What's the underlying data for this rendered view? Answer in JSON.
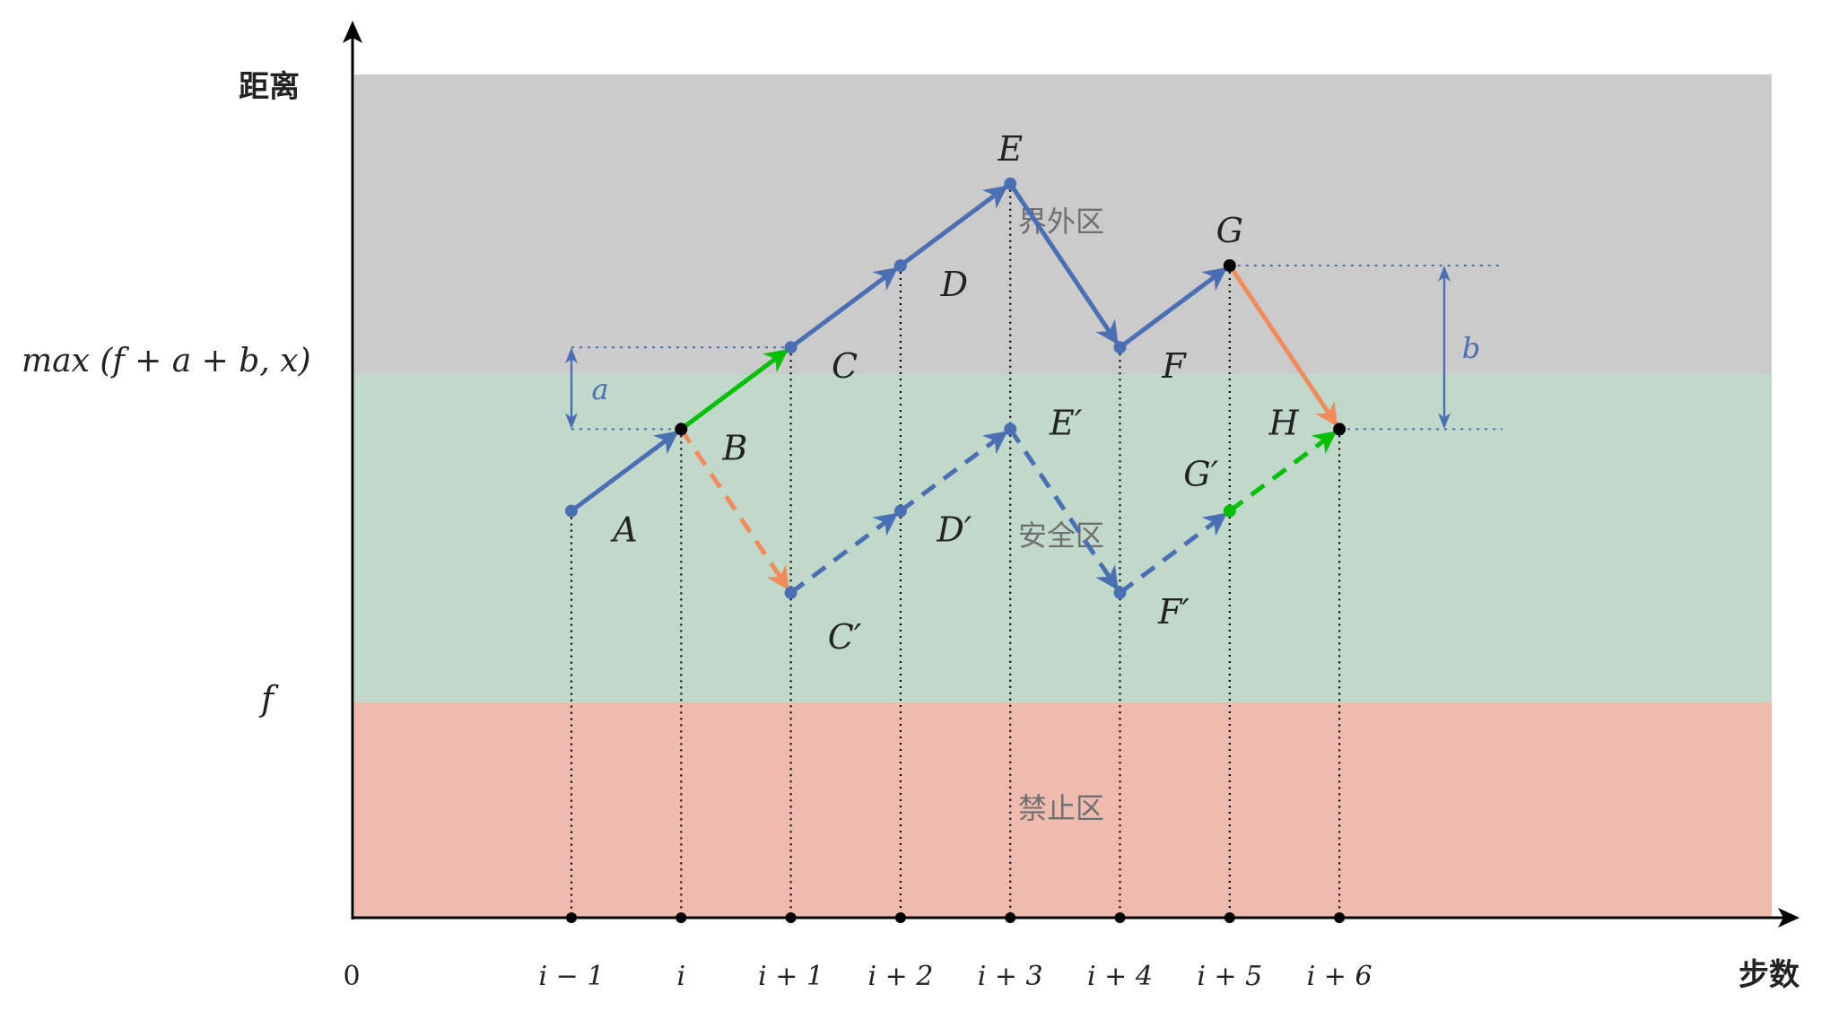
{
  "axes": {
    "y_label": "距离",
    "x_label": "步数",
    "origin_label": "0",
    "y_ticks": [
      {
        "key": "max",
        "text": "max (f + a + b, x)"
      },
      {
        "key": "f",
        "text": "f"
      }
    ],
    "x_ticks": [
      "i − 1",
      "i",
      "i + 1",
      "i + 2",
      "i + 3",
      "i + 4",
      "i + 5",
      "i + 6"
    ]
  },
  "zones": {
    "outer": {
      "label": "界外区",
      "color": "#cbcbcb"
    },
    "safe": {
      "label": "安全区",
      "color": "#c0d9cb"
    },
    "forbidden": {
      "label": "禁止区",
      "color": "#efbbae"
    }
  },
  "points": [
    {
      "name": "A",
      "step": 0,
      "level": 2
    },
    {
      "name": "B",
      "step": 1,
      "level": 3
    },
    {
      "name": "C",
      "step": 2,
      "level": 4
    },
    {
      "name": "D",
      "step": 3,
      "level": 5
    },
    {
      "name": "E",
      "step": 4,
      "level": 6
    },
    {
      "name": "F",
      "step": 5,
      "level": 4
    },
    {
      "name": "G",
      "step": 6,
      "level": 5
    },
    {
      "name": "H",
      "step": 7,
      "level": 3
    },
    {
      "name": "C′",
      "step": 2,
      "level": 1
    },
    {
      "name": "D′",
      "step": 3,
      "level": 2
    },
    {
      "name": "E′",
      "step": 4,
      "level": 3
    },
    {
      "name": "F′",
      "step": 5,
      "level": 1
    },
    {
      "name": "G′",
      "step": 6,
      "level": 2
    }
  ],
  "paths": [
    {
      "from": "A",
      "to": "B",
      "style": "solid",
      "color": "blue"
    },
    {
      "from": "B",
      "to": "C",
      "style": "solid",
      "color": "green"
    },
    {
      "from": "C",
      "to": "D",
      "style": "solid",
      "color": "blue"
    },
    {
      "from": "D",
      "to": "E",
      "style": "solid",
      "color": "blue"
    },
    {
      "from": "E",
      "to": "F",
      "style": "solid",
      "color": "blue"
    },
    {
      "from": "F",
      "to": "G",
      "style": "solid",
      "color": "blue"
    },
    {
      "from": "G",
      "to": "H",
      "style": "solid",
      "color": "orange"
    },
    {
      "from": "B",
      "to": "C′",
      "style": "dashed",
      "color": "orange"
    },
    {
      "from": "C′",
      "to": "D′",
      "style": "dashed",
      "color": "blue"
    },
    {
      "from": "D′",
      "to": "E′",
      "style": "dashed",
      "color": "blue"
    },
    {
      "from": "E′",
      "to": "F′",
      "style": "dashed",
      "color": "blue"
    },
    {
      "from": "F′",
      "to": "G′",
      "style": "dashed",
      "color": "blue"
    },
    {
      "from": "G′",
      "to": "H",
      "style": "dashed",
      "color": "green"
    }
  ],
  "dimensions": [
    {
      "label": "a"
    },
    {
      "label": "b"
    }
  ],
  "colors": {
    "blue": "#4a6fb3",
    "green": "#00c000",
    "orange": "#f28b5b",
    "black": "#000000"
  }
}
